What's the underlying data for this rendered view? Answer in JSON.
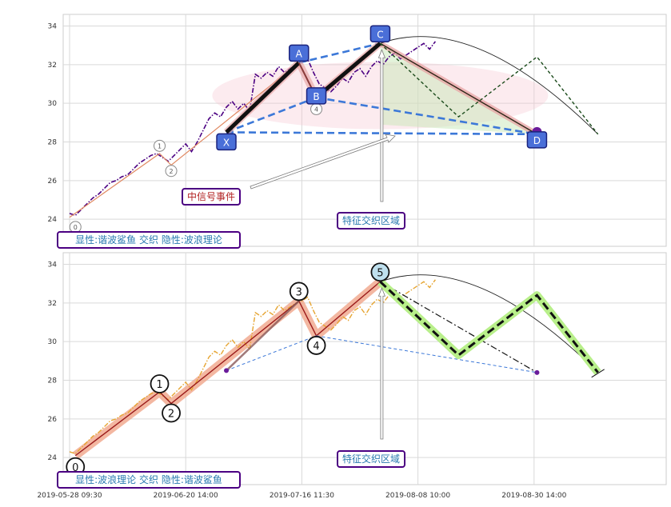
{
  "chart_data": [
    {
      "type": "line",
      "panel": "top",
      "xlim": [
        0,
        100
      ],
      "ylim": [
        22.6,
        34.6
      ],
      "yticks": [
        24,
        26,
        28,
        30,
        32,
        34
      ],
      "xtick_positions": [
        0,
        20,
        40,
        60,
        80
      ],
      "grid": true,
      "price_series": {
        "color": "#4b0082",
        "style": "dash-dot",
        "x": [
          0,
          1,
          2,
          3,
          4,
          5,
          6,
          7,
          8,
          9,
          10,
          11,
          12,
          13,
          14,
          15,
          16,
          17,
          18,
          19,
          20,
          21,
          22,
          23,
          24,
          25,
          26,
          27,
          28,
          29,
          30,
          31,
          32,
          33,
          34,
          35,
          36,
          37,
          38,
          39,
          40,
          41,
          42,
          43,
          44,
          45,
          46,
          47,
          48,
          49,
          50,
          51,
          52,
          53,
          54,
          55,
          56,
          57,
          58,
          59,
          60,
          61,
          62,
          63
        ],
        "y": [
          24.3,
          24.2,
          24.5,
          24.8,
          25.1,
          25.3,
          25.6,
          25.9,
          26.0,
          26.2,
          26.3,
          26.6,
          26.9,
          27.1,
          27.3,
          27.4,
          27.2,
          27.0,
          27.3,
          27.6,
          27.9,
          27.5,
          28.0,
          28.6,
          29.2,
          29.5,
          29.3,
          29.8,
          30.1,
          29.7,
          30.0,
          29.6,
          31.5,
          31.3,
          31.6,
          31.4,
          31.9,
          31.6,
          31.8,
          32.0,
          32.1,
          32.3,
          31.6,
          31.0,
          30.8,
          30.6,
          30.9,
          31.3,
          31.1,
          31.6,
          31.8,
          31.4,
          31.9,
          32.2,
          32.0,
          32.4,
          32.6,
          32.3,
          32.5,
          32.7,
          32.9,
          33.1,
          32.8,
          33.2
        ]
      },
      "wave_line": {
        "x": [
          0,
          15.5,
          17.5,
          39.5,
          42.5,
          53.5
        ],
        "y": [
          24.1,
          27.4,
          26.8,
          32.1,
          30.3,
          33.1
        ]
      },
      "points": {
        "X": {
          "x": 27,
          "y": 28.5
        },
        "A": {
          "x": 39.5,
          "y": 32.1
        },
        "B": {
          "x": 42.5,
          "y": 30.3
        },
        "C": {
          "x": 53.5,
          "y": 33.1
        },
        "D": {
          "x": 80.5,
          "y": 28.4
        }
      },
      "small_labels": [
        {
          "text": "0",
          "x": 1,
          "y": 23.6
        },
        {
          "text": "1",
          "x": 15.5,
          "y": 27.8
        },
        {
          "text": "2",
          "x": 17.5,
          "y": 26.5
        },
        {
          "text": "4",
          "x": 42.5,
          "y": 29.7
        }
      ],
      "arc": {
        "start": [
          53.5,
          33.1
        ],
        "peak": [
          69.5,
          33.3
        ],
        "end": [
          91,
          28.4
        ]
      },
      "green_path": {
        "x": [
          53.5,
          67,
          80.5,
          91
        ],
        "y": [
          33.1,
          29.3,
          32.4,
          28.4
        ]
      },
      "pattern_name_label": "谐波鲨鱼",
      "annotations": {
        "zone": "特征交织区域",
        "event": "中信号事件",
        "legend": "显性:谐波鲨鱼 交织 隐性:波浪理论"
      }
    },
    {
      "type": "line",
      "panel": "bottom",
      "xlim": [
        0,
        100
      ],
      "ylim": [
        22.6,
        34.6
      ],
      "yticks": [
        24,
        26,
        28,
        30,
        32,
        34
      ],
      "xtick_labels": [
        "2019-05-28 09:30",
        "2019-06-20 14:00",
        "2019-07-16 11:30",
        "2019-08-08 10:00",
        "2019-08-30 14:00"
      ],
      "xtick_positions": [
        0,
        20,
        40,
        60,
        80
      ],
      "grid": true,
      "price_series": {
        "color": "#e6a532",
        "style": "dash-dot",
        "x": [
          0,
          1,
          2,
          3,
          4,
          5,
          6,
          7,
          8,
          9,
          10,
          11,
          12,
          13,
          14,
          15,
          16,
          17,
          18,
          19,
          20,
          21,
          22,
          23,
          24,
          25,
          26,
          27,
          28,
          29,
          30,
          31,
          32,
          33,
          34,
          35,
          36,
          37,
          38,
          39,
          40,
          41,
          42,
          43,
          44,
          45,
          46,
          47,
          48,
          49,
          50,
          51,
          52,
          53,
          54,
          55,
          56,
          57,
          58,
          59,
          60,
          61,
          62,
          63
        ],
        "y": [
          24.3,
          24.2,
          24.5,
          24.8,
          25.1,
          25.3,
          25.6,
          25.9,
          26.0,
          26.2,
          26.3,
          26.6,
          26.9,
          27.1,
          27.3,
          27.4,
          27.2,
          27.0,
          27.3,
          27.6,
          27.9,
          27.5,
          28.0,
          28.6,
          29.2,
          29.5,
          29.3,
          29.8,
          30.1,
          29.7,
          30.0,
          29.6,
          31.5,
          31.3,
          31.6,
          31.4,
          31.9,
          31.6,
          31.8,
          32.0,
          32.1,
          32.3,
          31.6,
          31.0,
          30.8,
          30.6,
          30.9,
          31.3,
          31.1,
          31.6,
          31.8,
          31.4,
          31.9,
          32.2,
          32.0,
          32.4,
          32.6,
          32.3,
          32.5,
          32.7,
          32.9,
          33.1,
          32.8,
          33.2
        ]
      },
      "wave_points": [
        {
          "label": "0",
          "x": 1,
          "y": 24.1
        },
        {
          "label": "1",
          "x": 15.5,
          "y": 27.4
        },
        {
          "label": "2",
          "x": 17.5,
          "y": 26.8
        },
        {
          "label": "3",
          "x": 39.5,
          "y": 32.1
        },
        {
          "label": "4",
          "x": 42.5,
          "y": 30.3
        },
        {
          "label": "5",
          "x": 53.5,
          "y": 33.1
        }
      ],
      "projection": {
        "x": [
          53.5,
          67,
          80.5,
          91
        ],
        "y": [
          33.1,
          29.3,
          32.4,
          28.4
        ]
      },
      "harmonic_hint": {
        "X": [
          27,
          28.5
        ],
        "D": [
          80.5,
          28.4
        ]
      },
      "annotations": {
        "zone": "特征交织区域",
        "legend": "显性:波浪理论 交织 隐性:谐波鲨鱼"
      }
    }
  ]
}
